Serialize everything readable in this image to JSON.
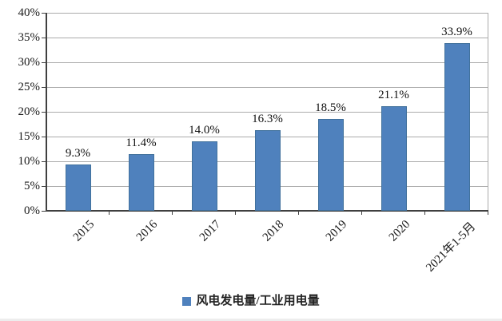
{
  "chart_data": {
    "type": "bar",
    "title": "",
    "xlabel": "",
    "ylabel": "",
    "categories": [
      "2015",
      "2016",
      "2017",
      "2018",
      "2019",
      "2020",
      "2021年1-5月"
    ],
    "values": [
      9.3,
      11.4,
      14.0,
      16.3,
      18.5,
      21.1,
      33.9
    ],
    "value_labels": [
      "9.3%",
      "11.4%",
      "14.0%",
      "16.3%",
      "18.5%",
      "21.1%",
      "33.9%"
    ],
    "legend": "风电发电量/工业用电量",
    "legend_position": "bottom-center",
    "ylim": [
      0,
      40
    ],
    "ytick_step": 5,
    "ytick_labels": [
      "0%",
      "5%",
      "10%",
      "15%",
      "20%",
      "25%",
      "30%",
      "35%",
      "40%"
    ],
    "grid": true,
    "colors": {
      "bar_fill": "#4F81BD",
      "bar_border": "#41719C",
      "gridline": "#ABABAB",
      "axis": "#404040",
      "text": "#1A1A1A",
      "background": "#FFFFFF"
    }
  }
}
